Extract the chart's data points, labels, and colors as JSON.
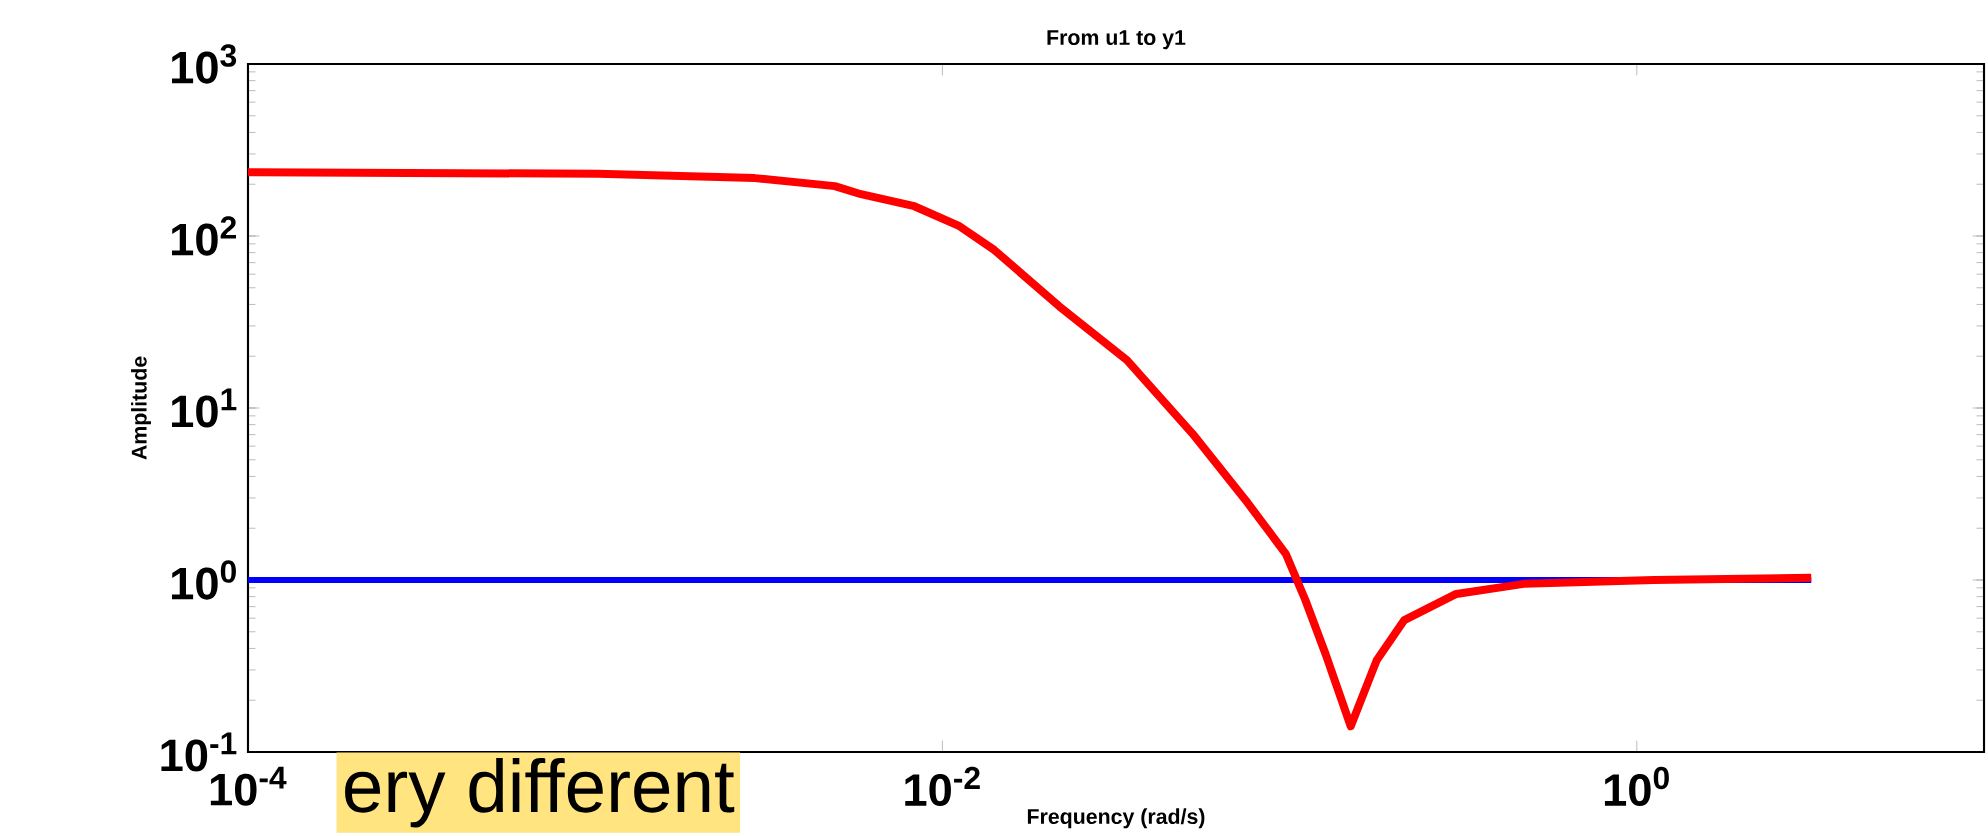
{
  "chart_data": {
    "type": "line",
    "title": "From u1 to y1",
    "xlabel": "Frequency (rad/s)",
    "ylabel": "Amplitude",
    "log": "xy",
    "grid": false,
    "marker": "none",
    "line_style": "solid",
    "xlim": [
      0.0001,
      10
    ],
    "ylim": [
      0.1,
      1000
    ],
    "xticks": [
      {
        "value": 0.0001,
        "label": "10$^{-4}$"
      },
      {
        "value": 0.01,
        "label": "10$^{-2}$"
      },
      {
        "value": 1,
        "label": "10$^{0}$"
      }
    ],
    "yticks": [
      {
        "value": 0.1,
        "label": "10$^{-1}$"
      },
      {
        "value": 1,
        "label": "10$^{0}$"
      },
      {
        "value": 10,
        "label": "10$^{1}$"
      },
      {
        "value": 100,
        "label": "10$^{2}$"
      },
      {
        "value": 1000,
        "label": "10$^{3}$"
      }
    ],
    "series": [
      {
        "color": "#0000ff",
        "x": [
          0.0001,
          3.18
        ],
        "values": [
          1,
          1
        ]
      },
      {
        "color": "#ff0000",
        "x": [
          0.0001,
          0.00102,
          0.00288,
          0.0049,
          0.00583,
          0.0083,
          0.0112,
          0.0141,
          0.0217,
          0.034,
          0.0525,
          0.0748,
          0.0975,
          0.111,
          0.127,
          0.15,
          0.178,
          0.214,
          0.302,
          0.472,
          1.12,
          3.18
        ],
        "values": [
          235,
          230,
          217,
          195,
          175,
          149,
          114,
          83,
          39,
          19,
          7.1,
          2.9,
          1.42,
          0.765,
          0.37,
          0.141,
          0.34,
          0.585,
          0.83,
          0.95,
          1.0,
          1.03
        ]
      }
    ],
    "annotations": [
      "ery different"
    ]
  }
}
